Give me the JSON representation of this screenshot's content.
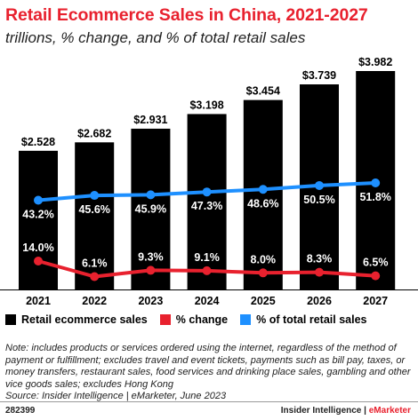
{
  "header": {
    "title": "Retail Ecommerce Sales in China, 2021-2027",
    "subtitle": "trillions, % change, and % of total retail sales"
  },
  "legend": {
    "items": [
      {
        "label": "Retail ecommerce sales",
        "color": "#000000"
      },
      {
        "label": "% change",
        "color": "#e8212e"
      },
      {
        "label": "% of total retail sales",
        "color": "#1e90ff"
      }
    ]
  },
  "note": "Note: includes products or services ordered using the internet, regardless of the method of payment or fulfillment; excludes travel and event tickets, payments such as bill pay, taxes, or money transfers, restaurant sales, food services and drinking place sales, gambling and other vice goods sales; excludes Hong Kong",
  "source": "Source: Insider Intelligence | eMarketer, June 2023",
  "footer": {
    "id": "282399",
    "brand_left": "Insider Intelligence",
    "separator": " | ",
    "brand_right": "eMarketer"
  },
  "chart_data": {
    "type": "bar",
    "categories": [
      "2021",
      "2022",
      "2023",
      "2024",
      "2025",
      "2026",
      "2027"
    ],
    "series": [
      {
        "name": "Retail ecommerce sales",
        "type": "bar",
        "color": "#000000",
        "values": [
          2.528,
          2.682,
          2.931,
          3.198,
          3.454,
          3.739,
          3.982
        ],
        "labels": [
          "$2.528",
          "$2.682",
          "$2.931",
          "$3.198",
          "$3.454",
          "$3.739",
          "$3.982"
        ]
      },
      {
        "name": "% change",
        "type": "line",
        "color": "#e8212e",
        "values": [
          14.0,
          6.1,
          9.3,
          9.1,
          8.0,
          8.3,
          6.5
        ],
        "labels": [
          "14.0%",
          "6.1%",
          "9.3%",
          "9.1%",
          "8.0%",
          "8.3%",
          "6.5%"
        ]
      },
      {
        "name": "% of total retail sales",
        "type": "line",
        "color": "#1e90ff",
        "values": [
          43.2,
          45.6,
          45.9,
          47.3,
          48.6,
          50.5,
          51.8
        ],
        "labels": [
          "43.2%",
          "45.6%",
          "45.9%",
          "47.3%",
          "48.6%",
          "50.5%",
          "51.8%"
        ]
      }
    ]
  }
}
